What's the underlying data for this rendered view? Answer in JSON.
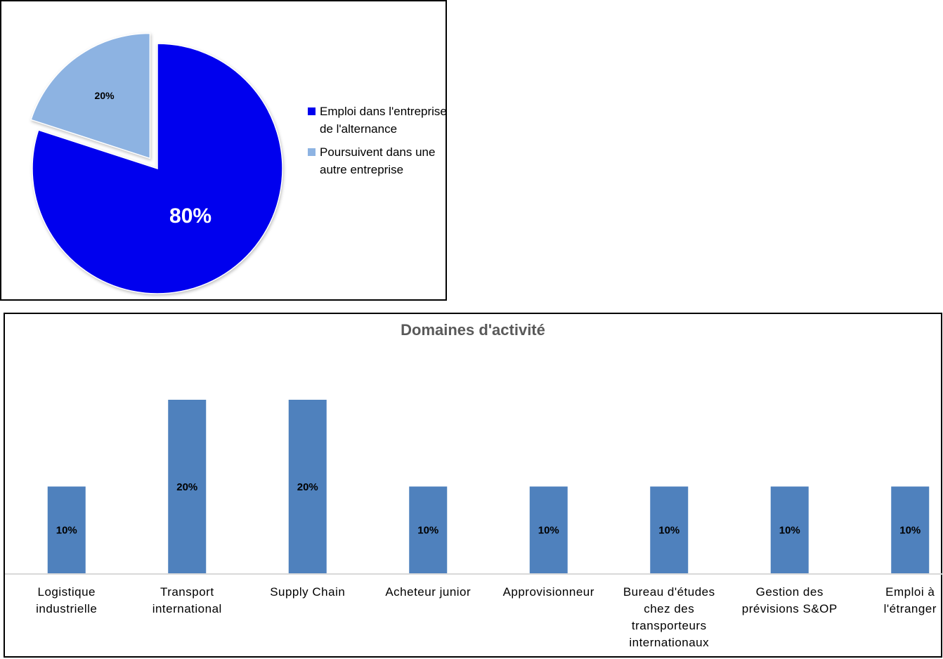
{
  "chart_data": [
    {
      "type": "pie",
      "title": "",
      "slices": [
        {
          "label": "Emploi dans l'entreprise de l'alternance",
          "value": 80,
          "data_label": "80%",
          "color": "#0000EE"
        },
        {
          "label": "Poursuivent dans une autre entreprise",
          "value": 20,
          "data_label": "20%",
          "color": "#8DB3E2",
          "exploded": true
        }
      ],
      "legend_position": "right"
    },
    {
      "type": "bar",
      "title": "Domaines d'activité",
      "categories": [
        "Logistique\nindustrielle",
        "Transport\ninternational",
        "Supply Chain",
        "Acheteur junior",
        "Approvisionneur",
        "Bureau d'études\nchez des\ntransporteurs\ninternationaux",
        "Gestion des\nprévisions S&OP",
        "Emploi à\nl'étranger"
      ],
      "values": [
        10,
        20,
        20,
        10,
        10,
        10,
        10,
        10
      ],
      "data_labels": [
        "10%",
        "20%",
        "20%",
        "10%",
        "10%",
        "10%",
        "10%",
        "10%"
      ],
      "color": "#4F81BD",
      "xlabel": "",
      "ylabel": "",
      "ylim": [
        0,
        20
      ],
      "grid": false,
      "legend": "none"
    }
  ]
}
